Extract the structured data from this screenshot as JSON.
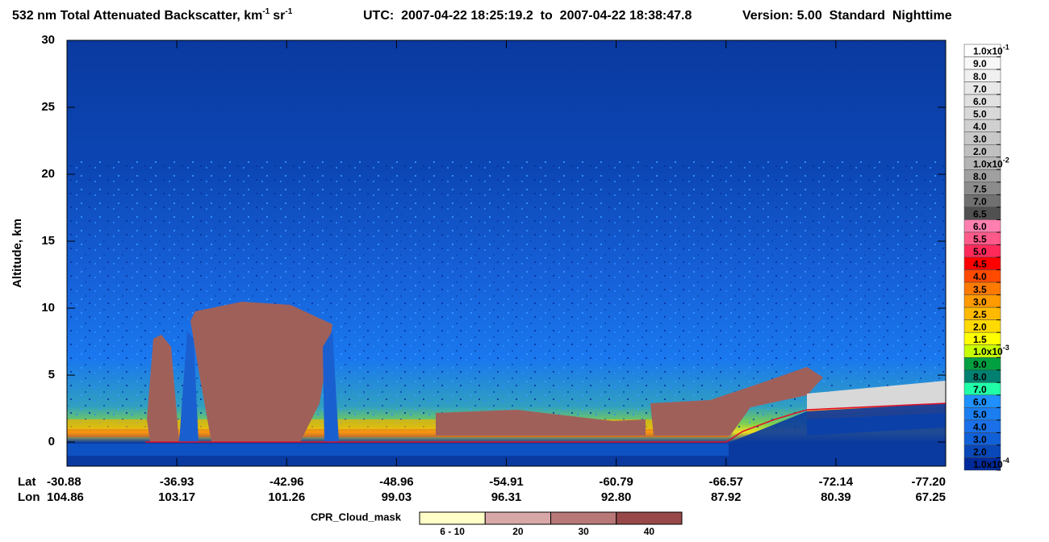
{
  "chart_data": {
    "type": "curtain",
    "title": [
      "532 nm Total Attenuated Backscatter, km",
      "-1",
      "sr",
      "-1"
    ],
    "subtitle": "UTC:  2007-04-22 18:25:19.2  to  2007-04-22 18:38:47.8",
    "version": "Version: 5.00  Standard  Nighttime",
    "y_label": "Altitude, km",
    "ylim": [
      -1.8,
      30
    ],
    "yticks": [
      0,
      5,
      10,
      15,
      20,
      25,
      30
    ],
    "x_rows": [
      "Lat",
      "Lon"
    ],
    "lat": [
      "-30.88",
      "-36.93",
      "-42.96",
      "-48.96",
      "-54.91",
      "-60.79",
      "-66.57",
      "-72.14",
      "-77.20"
    ],
    "lon": [
      "104.86",
      "103.17",
      "101.26",
      "99.03",
      "96.31",
      "92.80",
      "87.92",
      "80.39",
      "67.25"
    ],
    "colorbar": {
      "levels": [
        {
          "label": "1.0x10",
          "exp": "-1"
        },
        "9.0",
        "8.0",
        "7.0",
        "6.0",
        "5.0",
        "4.0",
        "3.0",
        "2.0",
        {
          "label": "1.0x10",
          "exp": "-2"
        },
        "8.0",
        "7.5",
        "7.0",
        "6.5",
        "6.0",
        "5.5",
        "5.0",
        "4.5",
        "4.0",
        "3.5",
        "3.0",
        "2.5",
        "2.0",
        "1.5",
        {
          "label": "1.0x10",
          "exp": "-3"
        },
        "9.0",
        "8.0",
        "7.0",
        "6.0",
        "5.0",
        "4.0",
        "3.0",
        "2.0",
        {
          "label": "1.0x10",
          "exp": "-4"
        }
      ],
      "colors": [
        "#ffffff",
        "#f8f8f8",
        "#f0f0f0",
        "#e8e8e8",
        "#e0e0e0",
        "#d8d8d8",
        "#d0d0d0",
        "#c8c8c8",
        "#c0c0c0",
        "#b4b4b4",
        "#a0a0a0",
        "#8c8c8c",
        "#707070",
        "#505050",
        "#ff80b0",
        "#ff5a8a",
        "#ff2a5a",
        "#ff0000",
        "#ff4a00",
        "#ff7a00",
        "#ff9a00",
        "#ffba00",
        "#ffda00",
        "#ffff00",
        "#c8ff00",
        "#00a040",
        "#008070",
        "#20ffa8",
        "#1e90ff",
        "#1a7ef0",
        "#1a70e8",
        "#1060d8",
        "#0848b8",
        "#002a9a"
      ]
    },
    "cpr_legend": {
      "title": "CPR_Cloud_mask",
      "labels": [
        "6 - 10",
        "20",
        "30",
        "40"
      ],
      "colors": [
        "#ffffc8",
        "#d8a8a8",
        "#b87878",
        "#984848"
      ]
    }
  }
}
